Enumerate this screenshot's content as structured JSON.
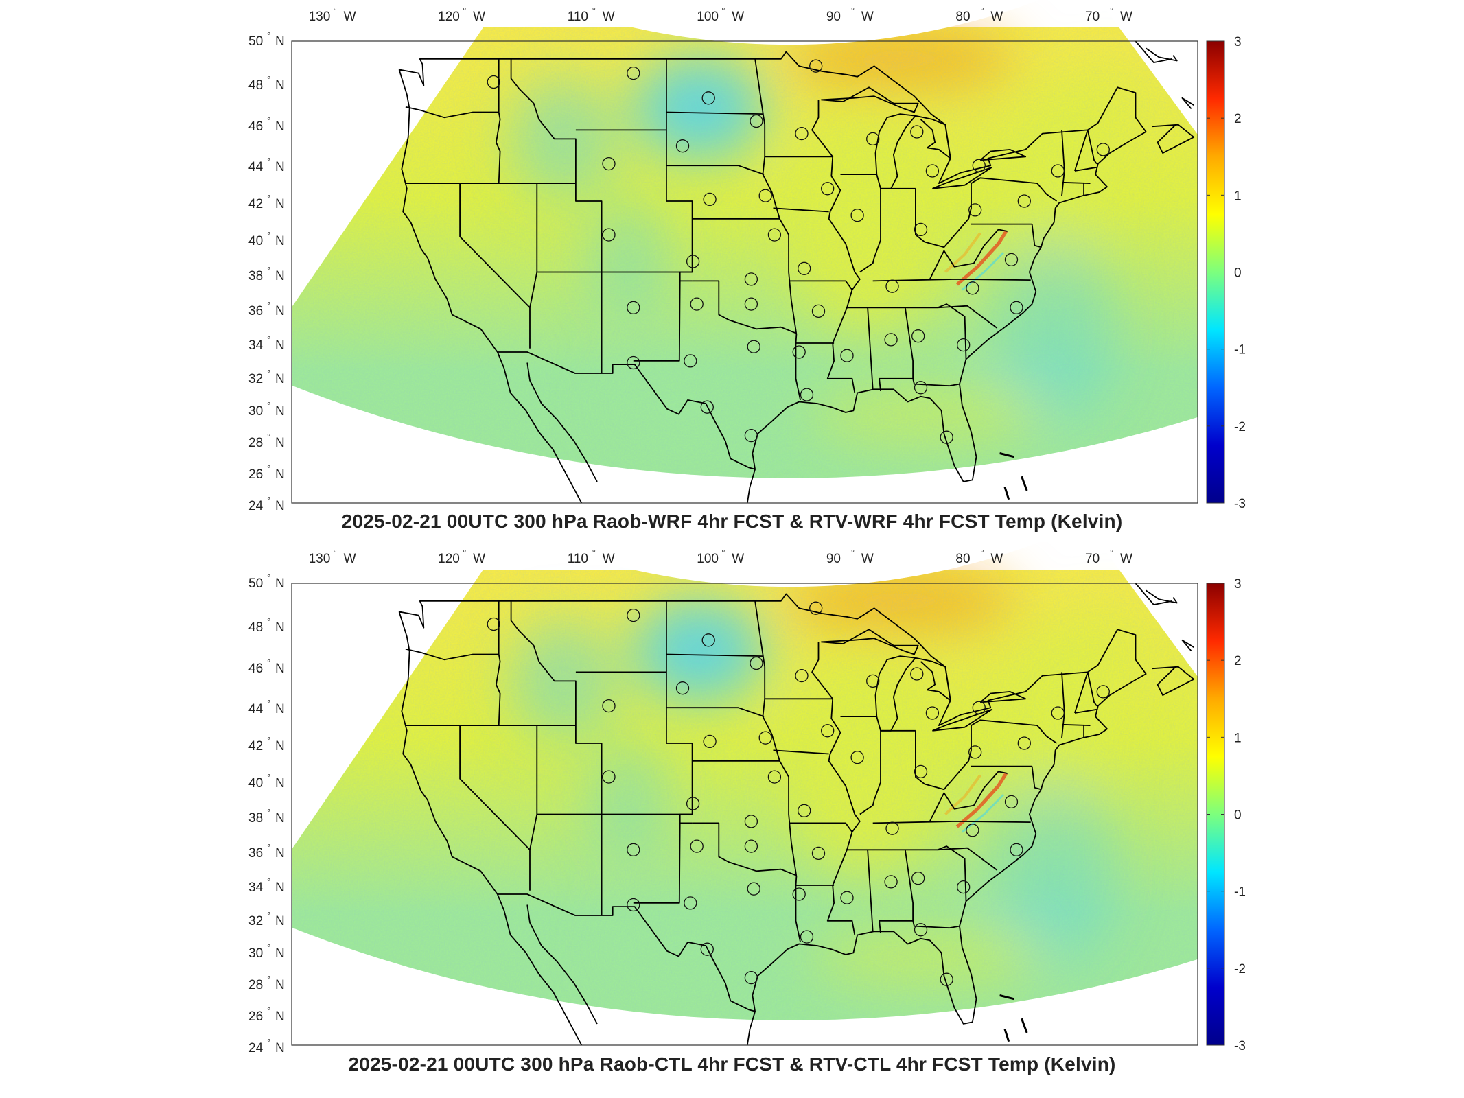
{
  "panels": [
    {
      "title": "2025-02-21 00UTC 300 hPa Raob-WRF 4hr FCST & RTV-WRF 4hr FCST Temp (Kelvin)"
    },
    {
      "title": "2025-02-21 00UTC 300 hPa Raob-CTL 4hr FCST & RTV-CTL 4hr FCST Temp (Kelvin)"
    }
  ],
  "map": {
    "lon_ticks": [
      "130",
      "120",
      "110",
      "100",
      "90",
      "80",
      "70"
    ],
    "lon_hemisphere": "W",
    "lat_ticks": [
      "50",
      "48",
      "46",
      "44",
      "42",
      "40",
      "38",
      "36",
      "34",
      "32",
      "30",
      "28",
      "26",
      "24"
    ],
    "lat_hemisphere": "N",
    "degree_symbol": "°",
    "lon_range": [
      -133,
      -63
    ],
    "lat_range": [
      24,
      50
    ]
  },
  "colorbar": {
    "ticks": [
      "3",
      "2",
      "1",
      "0",
      "-1",
      "-2",
      "-3"
    ],
    "min": -3,
    "max": 3,
    "colors": [
      "#8b0000",
      "#ff2a00",
      "#ffaa00",
      "#ffff00",
      "#7dff7d",
      "#00e6ff",
      "#0066ff",
      "#0000cc",
      "#00008b"
    ]
  },
  "field_colors": {
    "base": "#9ee89a",
    "north_warm": "#f5e94a",
    "hot": "#f3a51e",
    "cold": "#4fd4f0",
    "warm": "#dff043"
  },
  "raob_stations": [
    {
      "lon": -117.4,
      "lat": 47.7
    },
    {
      "lon": -106.6,
      "lat": 48.2
    },
    {
      "lon": -100.8,
      "lat": 46.8
    },
    {
      "lon": -97.1,
      "lat": 45.5
    },
    {
      "lon": -93.6,
      "lat": 44.8
    },
    {
      "lon": -92.5,
      "lat": 48.6
    },
    {
      "lon": -88.1,
      "lat": 44.5
    },
    {
      "lon": -84.7,
      "lat": 44.9
    },
    {
      "lon": -83.5,
      "lat": 42.7
    },
    {
      "lon": -79.9,
      "lat": 43.0
    },
    {
      "lon": -73.8,
      "lat": 42.7
    },
    {
      "lon": -70.3,
      "lat": 43.9
    },
    {
      "lon": -108.5,
      "lat": 43.1
    },
    {
      "lon": -102.8,
      "lat": 44.1
    },
    {
      "lon": -100.7,
      "lat": 41.1
    },
    {
      "lon": -96.4,
      "lat": 41.3
    },
    {
      "lon": -91.6,
      "lat": 41.7
    },
    {
      "lon": -89.3,
      "lat": 40.2
    },
    {
      "lon": -84.4,
      "lat": 39.4
    },
    {
      "lon": -80.2,
      "lat": 40.5
    },
    {
      "lon": -108.5,
      "lat": 39.1
    },
    {
      "lon": -102.0,
      "lat": 37.6
    },
    {
      "lon": -95.7,
      "lat": 39.1
    },
    {
      "lon": -97.5,
      "lat": 36.6
    },
    {
      "lon": -93.4,
      "lat": 37.2
    },
    {
      "lon": -86.6,
      "lat": 36.2
    },
    {
      "lon": -80.4,
      "lat": 36.1
    },
    {
      "lon": -77.4,
      "lat": 37.7
    },
    {
      "lon": -106.6,
      "lat": 35.0
    },
    {
      "lon": -101.7,
      "lat": 35.2
    },
    {
      "lon": -97.5,
      "lat": 35.2
    },
    {
      "lon": -92.3,
      "lat": 34.8
    },
    {
      "lon": -86.7,
      "lat": 33.2
    },
    {
      "lon": -84.6,
      "lat": 33.4
    },
    {
      "lon": -81.1,
      "lat": 32.9
    },
    {
      "lon": -77.0,
      "lat": 35.0
    },
    {
      "lon": -106.6,
      "lat": 31.9
    },
    {
      "lon": -102.2,
      "lat": 32.0
    },
    {
      "lon": -97.3,
      "lat": 32.8
    },
    {
      "lon": -93.8,
      "lat": 32.5
    },
    {
      "lon": -90.1,
      "lat": 32.3
    },
    {
      "lon": -100.9,
      "lat": 29.4
    },
    {
      "lon": -93.2,
      "lat": 30.1
    },
    {
      "lon": -97.5,
      "lat": 27.8
    },
    {
      "lon": -84.4,
      "lat": 30.5
    },
    {
      "lon": -82.4,
      "lat": 27.7
    },
    {
      "lon": -76.4,
      "lat": 41.0
    }
  ]
}
